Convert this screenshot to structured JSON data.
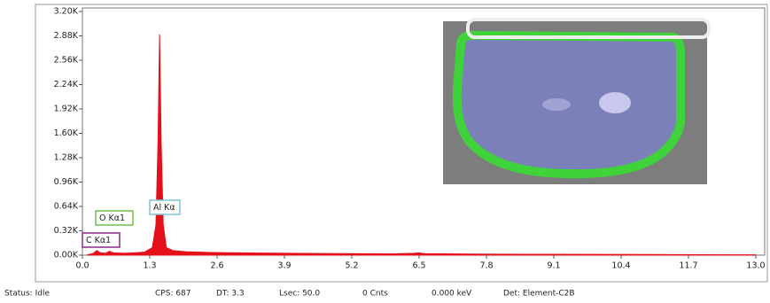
{
  "chart_data": {
    "type": "area",
    "x": [
      0.1,
      0.2,
      0.28,
      0.35,
      0.45,
      0.52,
      0.6,
      0.8,
      1.0,
      1.2,
      1.35,
      1.42,
      1.46,
      1.49,
      1.52,
      1.56,
      1.62,
      1.75,
      2.0,
      2.5,
      3.0,
      4.0,
      5.0,
      6.0,
      6.4,
      6.5,
      6.6,
      7.5,
      8.5,
      10.0,
      11.0,
      12.0,
      13.0
    ],
    "values": [
      5,
      20,
      60,
      30,
      25,
      50,
      30,
      25,
      30,
      40,
      100,
      400,
      1500,
      2900,
      1500,
      400,
      100,
      60,
      45,
      35,
      30,
      25,
      20,
      18,
      25,
      30,
      20,
      15,
      12,
      10,
      8,
      6,
      5
    ],
    "color": "#e3101a",
    "xlim": [
      0,
      13
    ],
    "ylim": [
      0,
      3200
    ],
    "xticks": [
      {
        "value": 0,
        "label": "0.0"
      },
      1.3,
      2.6,
      3.9,
      5.2,
      6.5,
      7.8,
      9.1,
      10.4,
      11.7,
      {
        "value": 13,
        "label": "13.0"
      }
    ],
    "yticks": [
      {
        "value": 0,
        "label": "0.00K"
      },
      {
        "value": 320,
        "label": "0.32K"
      },
      {
        "value": 640,
        "label": "0.64K"
      },
      {
        "value": 960,
        "label": "0.96K"
      },
      {
        "value": 1280,
        "label": "1.28K"
      },
      {
        "value": 1600,
        "label": "1.60K"
      },
      {
        "value": 1920,
        "label": "1.92K"
      },
      {
        "value": 2240,
        "label": "2.24K"
      },
      {
        "value": 2560,
        "label": "2.56K"
      },
      {
        "value": 2880,
        "label": "2.88K"
      },
      {
        "value": 3200,
        "label": "3.20K"
      }
    ],
    "annotations": [
      "O  Kα1",
      "Al Kα",
      "C  Kα1"
    ]
  },
  "status_bar": [
    "Status: Idle",
    "CPS: 687",
    "DT: 3.3",
    "Lsec: 50.0",
    "0 Cnts",
    "0.000 keV",
    "Det: Element-C2B"
  ]
}
